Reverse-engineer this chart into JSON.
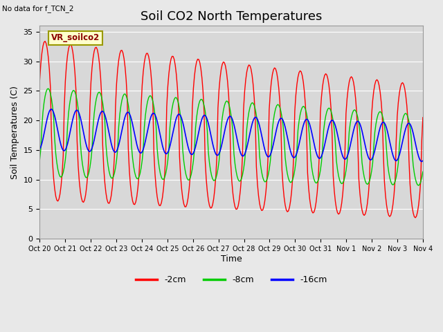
{
  "title": "Soil CO2 North Temperatures",
  "no_data_label": "No data for f_TCN_2",
  "sensor_label": "VR_soilco2",
  "ylabel": "Soil Temperatures (C)",
  "xlabel": "Time",
  "ylim": [
    0,
    36
  ],
  "yticks": [
    0,
    5,
    10,
    15,
    20,
    25,
    30,
    35
  ],
  "x_labels": [
    "Oct 20",
    "Oct 21",
    "Oct 22",
    "Oct 23",
    "Oct 24",
    "Oct 25",
    "Oct 26",
    "Oct 27",
    "Oct 28",
    "Oct 29",
    "Oct 30",
    "Oct 31",
    "Nov 1",
    "Nov 2",
    "Nov 3",
    "Nov 4"
  ],
  "legend": [
    {
      "label": "-2cm",
      "color": "#ff0000"
    },
    {
      "label": "-8cm",
      "color": "#00cc00"
    },
    {
      "label": "-16cm",
      "color": "#0000ff"
    }
  ],
  "background_color": "#e8e8e8",
  "plot_bg_color": "#d8d8d8",
  "grid_color": "#ffffff",
  "title_fontsize": 13,
  "axis_fontsize": 9,
  "tick_fontsize": 8
}
